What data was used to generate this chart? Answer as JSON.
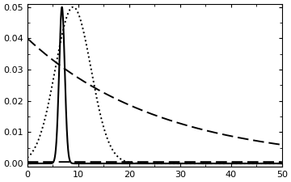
{
  "xmin": 0,
  "xmax": 50,
  "ymin": -0.001,
  "ymax": 0.05,
  "xticks": [
    0,
    10,
    20,
    30,
    40,
    50
  ],
  "yticks": [
    0.0,
    0.01,
    0.02,
    0.03,
    0.04,
    0.05
  ],
  "curves": [
    {
      "label": "long_dash",
      "type": "exponential",
      "rate": 0.038,
      "amp": 0.04,
      "lw": 1.4,
      "dashes": [
        7,
        3
      ]
    },
    {
      "label": "solid",
      "type": "normal",
      "mu": 6.5,
      "sigma": 0.6,
      "amp": 1.0,
      "lw": 1.5,
      "ls": "-"
    },
    {
      "label": "dotted",
      "type": "normal",
      "mu": 9.0,
      "sigma": 2.0,
      "amp": 1.0,
      "lw": 1.4,
      "ls": ":"
    },
    {
      "label": "flat_dash",
      "type": "flat",
      "val": 0.0005,
      "lw": 1.4,
      "dashes": [
        7,
        3
      ]
    }
  ],
  "background": "#ffffff",
  "tick_fontsize": 8
}
